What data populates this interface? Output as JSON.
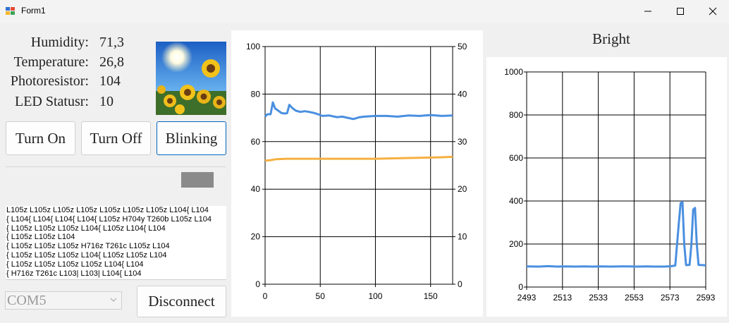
{
  "window": {
    "title": "Form1"
  },
  "readings": [
    {
      "label": "Humidity:",
      "value": "71,3"
    },
    {
      "label": "Temperature:",
      "value": "26,8"
    },
    {
      "label": "Photoresistor:",
      "value": "104"
    },
    {
      "label": "LED Statusr:",
      "value": "10"
    }
  ],
  "buttons": {
    "turn_on": "Turn On",
    "turn_off": "Turn Off",
    "blinking": "Blinking",
    "disconnect": "Disconnect"
  },
  "port": {
    "value": "COM5"
  },
  "log_lines": [
    " L105z L105z L105z L105z L105z L105z L105z L104{ L104",
    "{ L104{ L104{ L104{ L104{ L105z H704y T260b L105z L104",
    "{ L105z L105z L105z L104{ L105z L104{ L104",
    "{ L105z L105z L104",
    "{ L105z L105z L105z H716z T261c L105z L104",
    "{ L105z L105z L105z L104{ L105z L105z L104",
    "{ L105z L105z L105z L105z L104{ L104",
    "{ H716z T261c L103| L103| L104{ L104"
  ],
  "colors": {
    "series_blue": "#4a8fe0",
    "series_orange": "#f5b041",
    "indicator": "#8a8a8a"
  },
  "chart_data": [
    {
      "type": "line",
      "title": "",
      "xlim": [
        0,
        170
      ],
      "ylim_left": [
        0,
        100
      ],
      "ylim_right": [
        0,
        50
      ],
      "x_ticks": [
        0,
        50,
        100,
        150
      ],
      "y_ticks_left": [
        0,
        20,
        40,
        60,
        80,
        100
      ],
      "y_ticks_right": [
        0,
        10,
        20,
        30,
        40,
        50
      ],
      "grid": true,
      "series": [
        {
          "axis": "left",
          "color": "#4a8fe0",
          "points": [
            [
              0,
              70.5
            ],
            [
              2,
              71.5
            ],
            [
              5,
              71.5
            ],
            [
              7,
              76.5
            ],
            [
              9,
              74
            ],
            [
              12,
              73
            ],
            [
              15,
              72
            ],
            [
              18,
              71.8
            ],
            [
              20,
              72
            ],
            [
              22,
              75.5
            ],
            [
              25,
              74
            ],
            [
              28,
              73
            ],
            [
              32,
              72.5
            ],
            [
              36,
              72.8
            ],
            [
              40,
              72.5
            ],
            [
              45,
              72
            ],
            [
              48,
              71.5
            ],
            [
              52,
              70.8
            ],
            [
              58,
              71
            ],
            [
              65,
              70.3
            ],
            [
              70,
              70.5
            ],
            [
              75,
              70
            ],
            [
              80,
              69.5
            ],
            [
              85,
              70.2
            ],
            [
              90,
              70.5
            ],
            [
              100,
              70.8
            ],
            [
              110,
              70.8
            ],
            [
              120,
              70.5
            ],
            [
              130,
              71
            ],
            [
              140,
              70.8
            ],
            [
              150,
              71.2
            ],
            [
              160,
              70.8
            ],
            [
              170,
              71
            ]
          ]
        },
        {
          "axis": "right",
          "color": "#f5b041",
          "points": [
            [
              0,
              26
            ],
            [
              5,
              26.1
            ],
            [
              10,
              26.3
            ],
            [
              20,
              26.4
            ],
            [
              30,
              26.4
            ],
            [
              40,
              26.4
            ],
            [
              60,
              26.4
            ],
            [
              80,
              26.4
            ],
            [
              100,
              26.4
            ],
            [
              120,
              26.5
            ],
            [
              140,
              26.6
            ],
            [
              160,
              26.7
            ],
            [
              170,
              26.8
            ]
          ]
        }
      ]
    },
    {
      "type": "line",
      "title": "Bright",
      "xlim": [
        2493,
        2593
      ],
      "ylim": [
        0,
        1000
      ],
      "x_ticks": [
        2493,
        2513,
        2533,
        2553,
        2573,
        2593
      ],
      "y_ticks": [
        0,
        200,
        400,
        600,
        800,
        1000
      ],
      "grid": true,
      "series": [
        {
          "color": "#4a8fe0",
          "points": [
            [
              2493,
              96
            ],
            [
              2500,
              95
            ],
            [
              2505,
              97
            ],
            [
              2510,
              95
            ],
            [
              2515,
              96
            ],
            [
              2520,
              95
            ],
            [
              2525,
              96
            ],
            [
              2530,
              95
            ],
            [
              2535,
              96
            ],
            [
              2540,
              95
            ],
            [
              2545,
              96
            ],
            [
              2550,
              96
            ],
            [
              2555,
              95
            ],
            [
              2560,
              96
            ],
            [
              2565,
              95
            ],
            [
              2570,
              95
            ],
            [
              2574,
              97
            ],
            [
              2576,
              100
            ],
            [
              2578,
              300
            ],
            [
              2579,
              390
            ],
            [
              2580,
              395
            ],
            [
              2581,
              200
            ],
            [
              2582,
              102
            ],
            [
              2584,
              103
            ],
            [
              2585,
              200
            ],
            [
              2586,
              360
            ],
            [
              2587,
              368
            ],
            [
              2588,
              200
            ],
            [
              2589,
              103
            ],
            [
              2591,
              102
            ],
            [
              2593,
              101
            ]
          ]
        }
      ]
    }
  ]
}
